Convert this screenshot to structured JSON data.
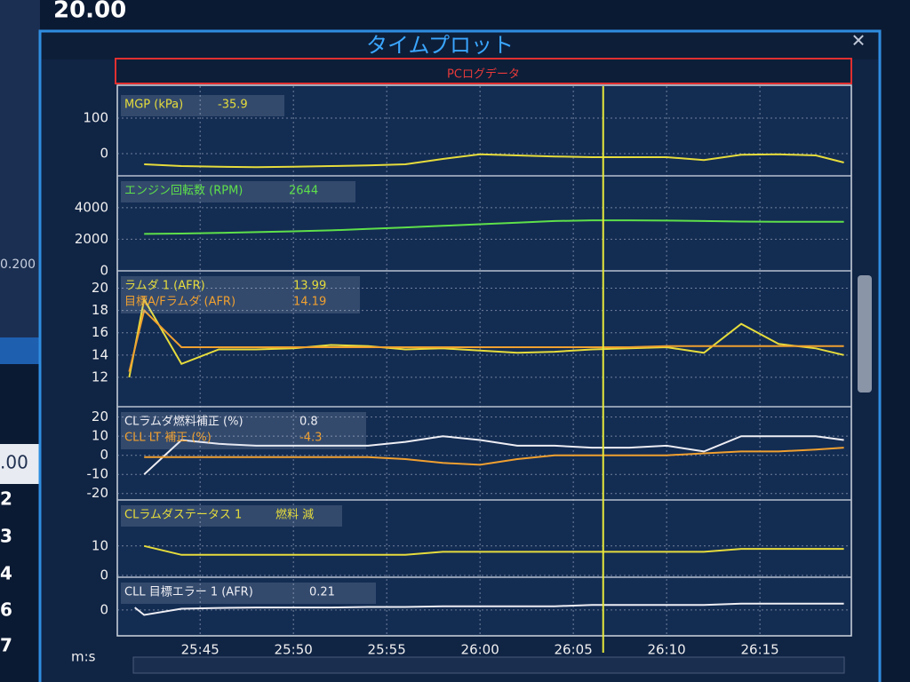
{
  "window_title": "タイムプロット",
  "log_label": "PCログデータ",
  "background": {
    "values": [
      "20.00",
      "0.200",
      ".00",
      "2",
      "3",
      "4",
      "6",
      "7"
    ]
  },
  "time_axis": {
    "label": "m:s",
    "xlim": [
      1540.8,
      1579.9
    ],
    "xticks": [
      {
        "value": 1545,
        "label": "25:45"
      },
      {
        "value": 1550,
        "label": "25:50"
      },
      {
        "value": 1555,
        "label": "25:55"
      },
      {
        "value": 1560,
        "label": "26:00"
      },
      {
        "value": 1565,
        "label": "26:05"
      },
      {
        "value": 1570,
        "label": "26:10"
      },
      {
        "value": 1575,
        "label": "26:15"
      }
    ],
    "cursor_x": 1566.6
  },
  "chart_data": [
    {
      "type": "line",
      "ylim": [
        -60,
        175
      ],
      "yticks": [
        100,
        0
      ],
      "grid": true,
      "x": [
        1542,
        1544,
        1546,
        1548,
        1550,
        1552,
        1554,
        1556,
        1558,
        1560,
        1562,
        1564,
        1566,
        1568,
        1570,
        1572,
        1574,
        1576,
        1578,
        1579.5
      ],
      "series": [
        {
          "name": "MGP (kPa)",
          "readout": -35.9,
          "color": "#e6dc3c",
          "values": [
            -30,
            -35,
            -37,
            -38,
            -37,
            -35,
            -33,
            -30,
            -15,
            -2,
            -5,
            -8,
            -10,
            -10,
            -10,
            -18,
            -3,
            -2,
            -5,
            -25
          ]
        }
      ]
    },
    {
      "type": "line",
      "ylim": [
        0,
        5900
      ],
      "yticks": [
        4000,
        2000,
        0
      ],
      "grid": true,
      "x": [
        1542,
        1544,
        1546,
        1548,
        1550,
        1552,
        1554,
        1556,
        1558,
        1560,
        1562,
        1564,
        1566,
        1568,
        1570,
        1572,
        1574,
        1576,
        1578,
        1579.5
      ],
      "series": [
        {
          "name": "エンジン回転数 (RPM)",
          "readout": 2644,
          "color": "#5ee04a",
          "values": [
            2340,
            2360,
            2400,
            2450,
            2500,
            2560,
            2650,
            2750,
            2850,
            2950,
            3050,
            3150,
            3200,
            3200,
            3180,
            3150,
            3120,
            3110,
            3100,
            3100
          ]
        }
      ]
    },
    {
      "type": "line",
      "ylim": [
        9.6,
        21.4
      ],
      "yticks": [
        20,
        18,
        16,
        14,
        12
      ],
      "grid": true,
      "x": [
        1541.2,
        1542,
        1544,
        1546,
        1548,
        1550,
        1552,
        1554,
        1556,
        1558,
        1560,
        1562,
        1564,
        1566,
        1568,
        1570,
        1572,
        1574,
        1576,
        1578,
        1579.5
      ],
      "series": [
        {
          "name": "ラムダ 1 (AFR)",
          "readout": 13.99,
          "color": "#e6dc3c",
          "values": [
            12,
            19,
            13.2,
            14.5,
            14.5,
            14.6,
            14.9,
            14.8,
            14.5,
            14.6,
            14.4,
            14.2,
            14.3,
            14.5,
            14.6,
            14.7,
            14.2,
            16.8,
            15,
            14.6,
            14
          ]
        },
        {
          "name": "目標A/Fラムダ (AFR)",
          "readout": 14.19,
          "color": "#f0a030",
          "values": [
            12.5,
            18,
            14.7,
            14.7,
            14.7,
            14.7,
            14.7,
            14.7,
            14.7,
            14.7,
            14.7,
            14.7,
            14.7,
            14.7,
            14.7,
            14.8,
            14.8,
            14.8,
            14.8,
            14.8,
            14.8
          ]
        }
      ]
    },
    {
      "type": "line",
      "ylim": [
        -22,
        24.5
      ],
      "yticks": [
        20,
        10,
        0,
        -10,
        -20
      ],
      "grid": true,
      "x": [
        1542,
        1544,
        1546,
        1548,
        1550,
        1552,
        1554,
        1556,
        1558,
        1560,
        1562,
        1564,
        1566,
        1568,
        1570,
        1572,
        1574,
        1576,
        1578,
        1579.5
      ],
      "series": [
        {
          "name": "CLラムダ燃料補正 (%)",
          "readout": 0.8,
          "color": "#eeeef4",
          "values": [
            -10,
            8,
            6,
            5,
            5,
            5,
            5,
            7,
            10,
            8,
            5,
            5,
            4,
            4,
            5,
            2,
            10,
            10,
            10,
            8
          ]
        },
        {
          "name": "CLL LT 補正 (%)",
          "readout": -4.3,
          "color": "#f0a030",
          "values": [
            -1,
            -1,
            -1,
            -1,
            -1,
            -1,
            -1,
            -2,
            -4,
            -5,
            -2,
            0,
            0,
            0,
            0,
            1,
            2,
            2,
            3,
            4
          ]
        }
      ]
    },
    {
      "type": "line",
      "ylim": [
        0,
        25
      ],
      "yticks": [
        10,
        0
      ],
      "grid": true,
      "x": [
        1542,
        1544,
        1546,
        1548,
        1550,
        1552,
        1554,
        1556,
        1558,
        1560,
        1562,
        1564,
        1566,
        1568,
        1570,
        1572,
        1574,
        1576,
        1578,
        1579.5
      ],
      "series": [
        {
          "name": "CLラムダステータス 1",
          "readout": "燃料 減",
          "color": "#e6dc3c",
          "values": [
            10,
            7,
            7,
            7,
            7,
            7,
            7,
            7,
            8,
            8,
            8,
            8,
            8,
            8,
            8,
            8,
            9,
            9,
            9,
            9
          ]
        }
      ]
    },
    {
      "type": "line",
      "ylim": [
        -1,
        1.24
      ],
      "yticks": [
        0
      ],
      "grid": true,
      "x": [
        1541.5,
        1542,
        1544,
        1546,
        1548,
        1550,
        1552,
        1554,
        1556,
        1558,
        1560,
        1562,
        1564,
        1566,
        1568,
        1570,
        1572,
        1574,
        1576,
        1578,
        1579.5
      ],
      "series": [
        {
          "name": "CLL 目標エラー 1 (AFR)",
          "readout": 0.21,
          "color": "#eeeef4",
          "values": [
            0.1,
            -0.2,
            0.05,
            0.08,
            0.1,
            0.1,
            0.1,
            0.12,
            0.12,
            0.15,
            0.15,
            0.15,
            0.15,
            0.2,
            0.2,
            0.2,
            0.2,
            0.25,
            0.25,
            0.25,
            0.25
          ]
        }
      ]
    }
  ]
}
